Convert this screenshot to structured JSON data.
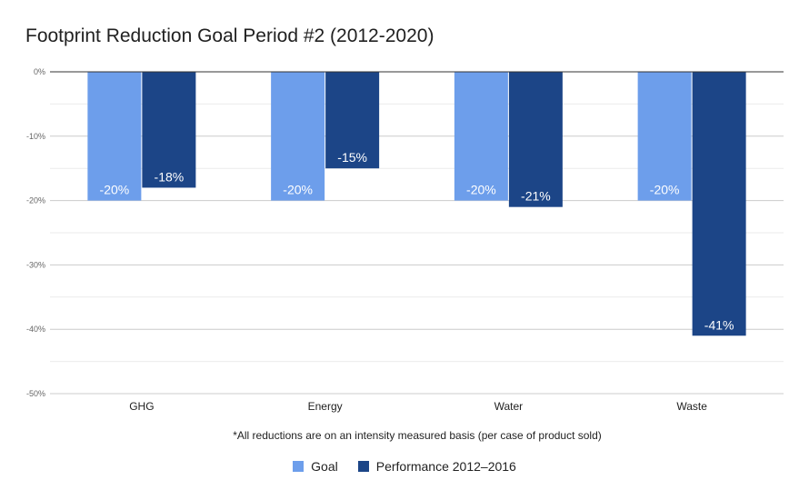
{
  "chart_data": {
    "type": "bar",
    "title": "Footprint Reduction Goal Period #2 (2012-2020)",
    "xlabel": "*All reductions are on an intensity measured basis (per case of product sold)",
    "ylabel": "",
    "categories": [
      "GHG",
      "Energy",
      "Water",
      "Waste"
    ],
    "series": [
      {
        "name": "Goal",
        "color": "#6d9eeb",
        "values": [
          -20,
          -20,
          -20,
          -20
        ],
        "labels": [
          "-20%",
          "-20%",
          "-20%",
          "-20%"
        ]
      },
      {
        "name": "Performance 2012–2016",
        "color": "#1c4587",
        "values": [
          -18,
          -15,
          -21,
          -41
        ],
        "labels": [
          "-18%",
          "-15%",
          "-21%",
          "-41%"
        ]
      }
    ],
    "ylim": [
      -50,
      0
    ],
    "yticks": [
      0,
      -10,
      -20,
      -30,
      -40,
      -50
    ],
    "ytick_labels": [
      "0%",
      "-10%",
      "-20%",
      "-30%",
      "-40%",
      "-50%"
    ],
    "grid": true,
    "legend_position": "bottom"
  }
}
